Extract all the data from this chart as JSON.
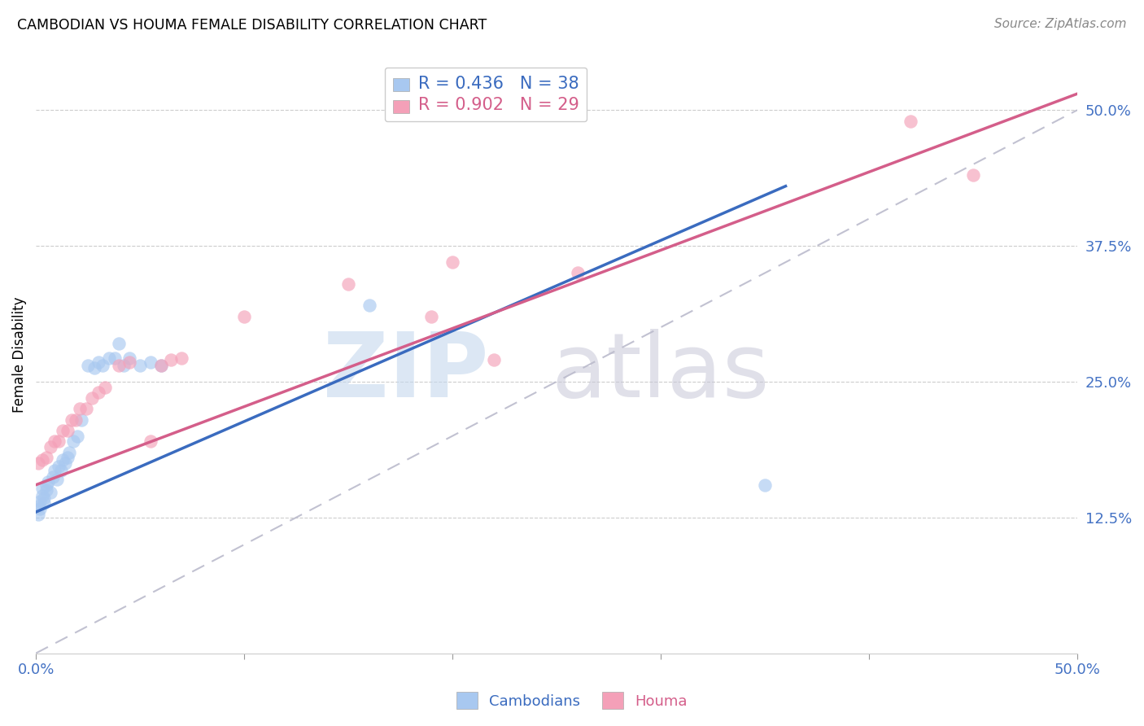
{
  "title": "CAMBODIAN VS HOUMA FEMALE DISABILITY CORRELATION CHART",
  "source": "Source: ZipAtlas.com",
  "ylabel": "Female Disability",
  "xlim": [
    0.0,
    0.5
  ],
  "ylim": [
    0.0,
    0.55
  ],
  "xtick_positions": [
    0.0,
    0.1,
    0.2,
    0.3,
    0.4,
    0.5
  ],
  "xtick_labels": [
    "0.0%",
    "",
    "",
    "",
    "",
    "50.0%"
  ],
  "ytick_vals_right": [
    0.125,
    0.25,
    0.375,
    0.5
  ],
  "ytick_labels_right": [
    "12.5%",
    "25.0%",
    "37.5%",
    "50.0%"
  ],
  "cambodian_R": 0.436,
  "cambodian_N": 38,
  "houma_R": 0.902,
  "houma_N": 29,
  "cambodian_color": "#A8C8F0",
  "houma_color": "#F4A0B8",
  "cambodian_line_color": "#3A6BBF",
  "houma_line_color": "#D45E8A",
  "diagonal_color": "#BBBBCC",
  "cambodian_x": [
    0.001,
    0.001,
    0.002,
    0.002,
    0.003,
    0.003,
    0.004,
    0.004,
    0.005,
    0.005,
    0.006,
    0.007,
    0.008,
    0.009,
    0.01,
    0.011,
    0.012,
    0.013,
    0.014,
    0.015,
    0.016,
    0.018,
    0.02,
    0.022,
    0.025,
    0.028,
    0.03,
    0.032,
    0.035,
    0.038,
    0.04,
    0.042,
    0.045,
    0.05,
    0.055,
    0.06,
    0.16,
    0.35
  ],
  "cambodian_y": [
    0.135,
    0.128,
    0.14,
    0.133,
    0.152,
    0.145,
    0.138,
    0.143,
    0.15,
    0.155,
    0.158,
    0.148,
    0.162,
    0.168,
    0.16,
    0.172,
    0.168,
    0.178,
    0.175,
    0.18,
    0.185,
    0.195,
    0.2,
    0.215,
    0.265,
    0.263,
    0.268,
    0.265,
    0.272,
    0.272,
    0.285,
    0.265,
    0.272,
    0.265,
    0.268,
    0.265,
    0.32,
    0.155
  ],
  "houma_x": [
    0.001,
    0.003,
    0.005,
    0.007,
    0.009,
    0.011,
    0.013,
    0.015,
    0.017,
    0.019,
    0.021,
    0.024,
    0.027,
    0.03,
    0.033,
    0.04,
    0.045,
    0.055,
    0.06,
    0.065,
    0.07,
    0.1,
    0.15,
    0.19,
    0.2,
    0.22,
    0.26,
    0.42,
    0.45
  ],
  "houma_y": [
    0.175,
    0.178,
    0.18,
    0.19,
    0.195,
    0.195,
    0.205,
    0.205,
    0.215,
    0.215,
    0.225,
    0.225,
    0.235,
    0.24,
    0.245,
    0.265,
    0.268,
    0.195,
    0.265,
    0.27,
    0.272,
    0.31,
    0.34,
    0.31,
    0.36,
    0.27,
    0.35,
    0.49,
    0.44
  ],
  "cambodian_line_x": [
    0.0,
    0.36
  ],
  "cambodian_line_y": [
    0.13,
    0.43
  ],
  "houma_line_x": [
    0.0,
    0.5
  ],
  "houma_line_y": [
    0.155,
    0.515
  ]
}
